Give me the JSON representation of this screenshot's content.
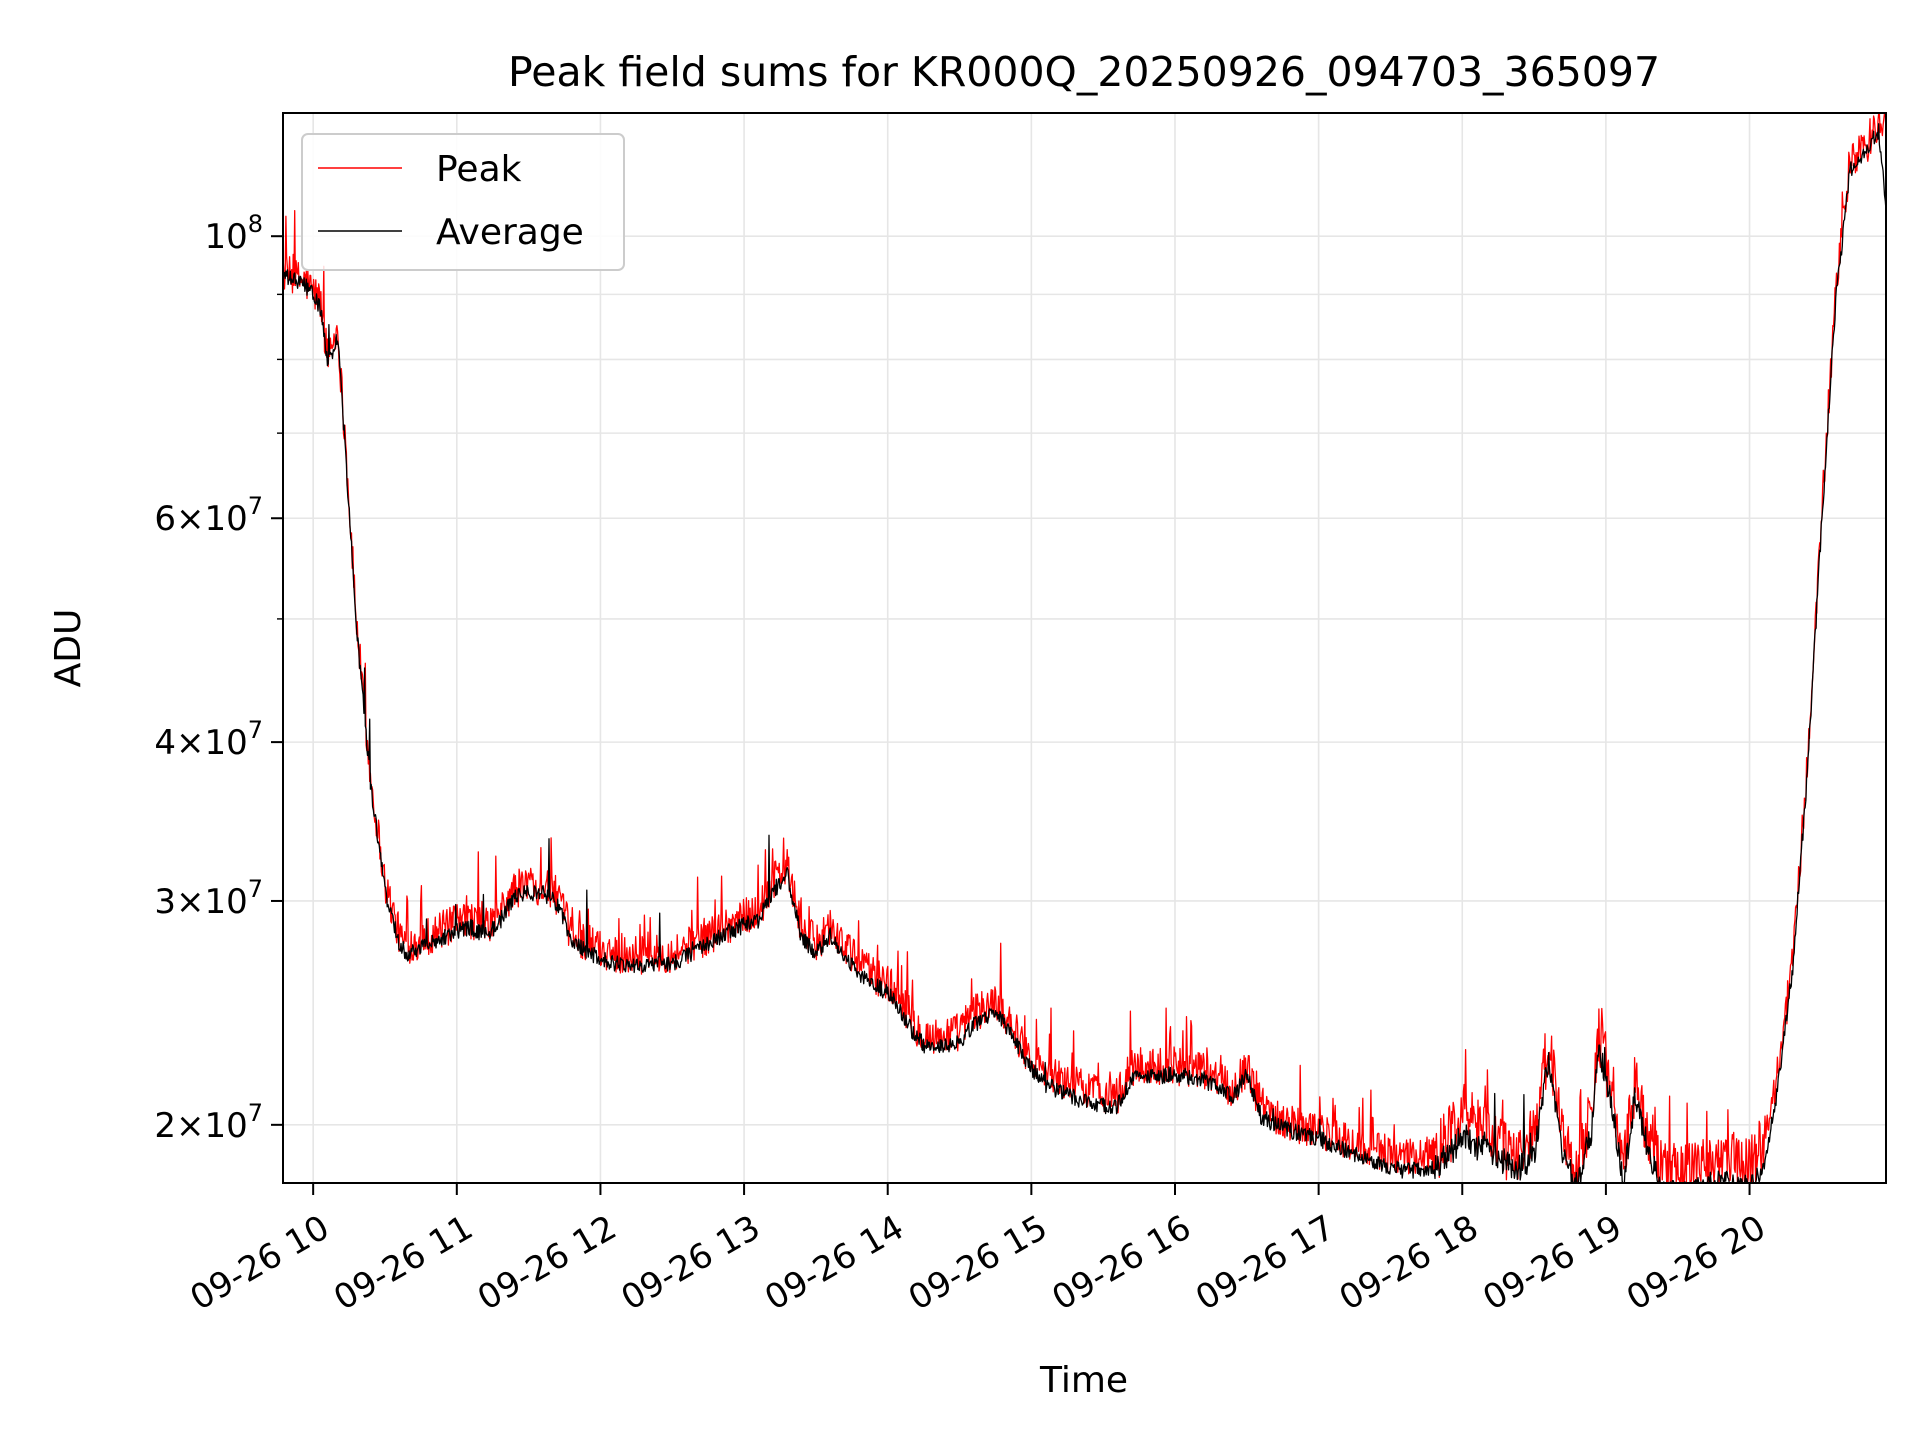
{
  "chart_data": {
    "type": "line",
    "title": "Peak field sums for KR000Q_20250926_094703_365097",
    "xlabel": "Time",
    "ylabel": "ADU",
    "yscale": "log",
    "ylim": [
      18000000,
      125000000
    ],
    "xlim": [
      9.79,
      20.95
    ],
    "grid": true,
    "legend_position": "upper-left",
    "x_ticks": [
      {
        "value": 10,
        "label": "09-26 10"
      },
      {
        "value": 11,
        "label": "09-26 11"
      },
      {
        "value": 12,
        "label": "09-26 12"
      },
      {
        "value": 13,
        "label": "09-26 13"
      },
      {
        "value": 14,
        "label": "09-26 14"
      },
      {
        "value": 15,
        "label": "09-26 15"
      },
      {
        "value": 16,
        "label": "09-26 16"
      },
      {
        "value": 17,
        "label": "09-26 17"
      },
      {
        "value": 18,
        "label": "09-26 18"
      },
      {
        "value": 19,
        "label": "09-26 19"
      },
      {
        "value": 20,
        "label": "09-26 20"
      }
    ],
    "y_major_ticks": [
      {
        "value": 20000000,
        "mantissa": "2",
        "exp": "7"
      },
      {
        "value": 30000000,
        "mantissa": "3",
        "exp": "7"
      },
      {
        "value": 40000000,
        "mantissa": "4",
        "exp": "7"
      },
      {
        "value": 60000000,
        "mantissa": "6",
        "exp": "7"
      },
      {
        "value": 100000000,
        "mantissa": "",
        "exp": "8"
      }
    ],
    "y_minor_grid": [
      50000000,
      70000000,
      80000000,
      90000000
    ],
    "series": [
      {
        "name": "Peak",
        "color": "#ff0000",
        "noise": 0.035,
        "spikes": 0.06,
        "x": [
          9.79,
          9.85,
          9.95,
          10.05,
          10.1,
          10.17,
          10.22,
          10.3,
          10.4,
          10.5,
          10.6,
          10.65,
          10.75,
          10.9,
          11.0,
          11.1,
          11.2,
          11.3,
          11.4,
          11.5,
          11.6,
          11.7,
          11.8,
          11.9,
          12.0,
          12.1,
          12.3,
          12.5,
          12.7,
          12.9,
          13.1,
          13.2,
          13.3,
          13.4,
          13.5,
          13.6,
          13.7,
          13.8,
          13.9,
          14.0,
          14.1,
          14.2,
          14.3,
          14.5,
          14.6,
          14.75,
          14.85,
          14.95,
          15.1,
          15.3,
          15.5,
          15.6,
          15.7,
          16.0,
          16.1,
          16.2,
          16.4,
          16.5,
          16.6,
          16.7,
          16.8,
          17.0,
          17.2,
          17.4,
          17.6,
          17.8,
          17.95,
          18.0,
          18.1,
          18.15,
          18.25,
          18.4,
          18.5,
          18.6,
          18.7,
          18.8,
          18.9,
          18.95,
          19.05,
          19.12,
          19.2,
          19.3,
          19.4,
          19.5,
          19.6,
          19.7,
          19.8,
          19.9,
          20.0,
          20.1,
          20.2,
          20.3,
          20.4,
          20.5,
          20.6,
          20.7,
          20.8,
          20.9,
          20.95
        ],
        "y": [
          93500000,
          93000000,
          92000000,
          89000000,
          80500000,
          84500000,
          70000000,
          50000000,
          37500000,
          31000000,
          28200000,
          27700000,
          28000000,
          28500000,
          28800000,
          29000000,
          28600000,
          29300000,
          30600000,
          31000000,
          30800000,
          30300000,
          28200000,
          27900000,
          27500000,
          27300000,
          27200000,
          27300000,
          28000000,
          28800000,
          29500000,
          31000000,
          32000000,
          28500000,
          27800000,
          28700000,
          27600000,
          26800000,
          26300000,
          25900000,
          25000000,
          23900000,
          23400000,
          23700000,
          24500000,
          25000000,
          24200000,
          23000000,
          22000000,
          21500000,
          21200000,
          21100000,
          22200000,
          22300000,
          22100000,
          22000000,
          21400000,
          22200000,
          20700000,
          20400000,
          20100000,
          19800000,
          19400000,
          19100000,
          18800000,
          19000000,
          20000000,
          20700000,
          19800000,
          20300000,
          19300000,
          18900000,
          19600000,
          23200000,
          19500000,
          18400000,
          20600000,
          23800000,
          21200000,
          18400000,
          21500000,
          19700000,
          18300000,
          18400000,
          18400000,
          18600000,
          19000000,
          18700000,
          18700000,
          19500000,
          22000000,
          27000000,
          38000000,
          60000000,
          90000000,
          115000000,
          117000000,
          122000000,
          124000000
        ]
      },
      {
        "name": "Average",
        "color": "#000000",
        "noise": 0.015,
        "spikes": 0.01,
        "x": [
          9.79,
          9.85,
          9.95,
          10.05,
          10.1,
          10.17,
          10.22,
          10.3,
          10.4,
          10.5,
          10.6,
          10.65,
          10.75,
          10.9,
          11.0,
          11.1,
          11.2,
          11.3,
          11.4,
          11.5,
          11.6,
          11.7,
          11.8,
          11.9,
          12.0,
          12.1,
          12.3,
          12.5,
          12.7,
          12.9,
          13.1,
          13.2,
          13.3,
          13.4,
          13.5,
          13.6,
          13.7,
          13.8,
          13.9,
          14.0,
          14.1,
          14.2,
          14.3,
          14.5,
          14.6,
          14.75,
          14.85,
          14.95,
          15.1,
          15.3,
          15.5,
          15.6,
          15.7,
          16.0,
          16.1,
          16.2,
          16.4,
          16.5,
          16.6,
          16.7,
          16.8,
          17.0,
          17.2,
          17.4,
          17.6,
          17.8,
          17.95,
          18.0,
          18.1,
          18.15,
          18.25,
          18.4,
          18.5,
          18.6,
          18.7,
          18.8,
          18.9,
          18.95,
          19.05,
          19.12,
          19.2,
          19.3,
          19.4,
          19.5,
          19.6,
          19.7,
          19.8,
          19.9,
          20.0,
          20.1,
          20.2,
          20.3,
          20.4,
          20.5,
          20.6,
          20.7,
          20.8,
          20.9,
          20.95
        ],
        "y": [
          93000000,
          92500000,
          91500000,
          88000000,
          79000000,
          83500000,
          69000000,
          49500000,
          37000000,
          30500000,
          27800000,
          27300000,
          27600000,
          28100000,
          28400000,
          28600000,
          28200000,
          28900000,
          30200000,
          30500000,
          30400000,
          29900000,
          27800000,
          27400000,
          27000000,
          26800000,
          26700000,
          26800000,
          27500000,
          28400000,
          29000000,
          30500000,
          31500000,
          28000000,
          27300000,
          28200000,
          27100000,
          26300000,
          25800000,
          25400000,
          24500000,
          23400000,
          22900000,
          23200000,
          24000000,
          24500000,
          23700000,
          22500000,
          21500000,
          21000000,
          20700000,
          20700000,
          21800000,
          21900000,
          21800000,
          21700000,
          21000000,
          21900000,
          20300000,
          20000000,
          19800000,
          19500000,
          19100000,
          18700000,
          18400000,
          18500000,
          19200000,
          19700000,
          19100000,
          19400000,
          18800000,
          18500000,
          18900000,
          22500000,
          18900000,
          17900000,
          19800000,
          23000000,
          20500000,
          17900000,
          21000000,
          19000000,
          17800000,
          17600000,
          17700000,
          17900000,
          18000000,
          17900000,
          17800000,
          18400000,
          21500000,
          26500000,
          37500000,
          59000000,
          89000000,
          113000000,
          116000000,
          121000000,
          105000000
        ]
      }
    ]
  }
}
